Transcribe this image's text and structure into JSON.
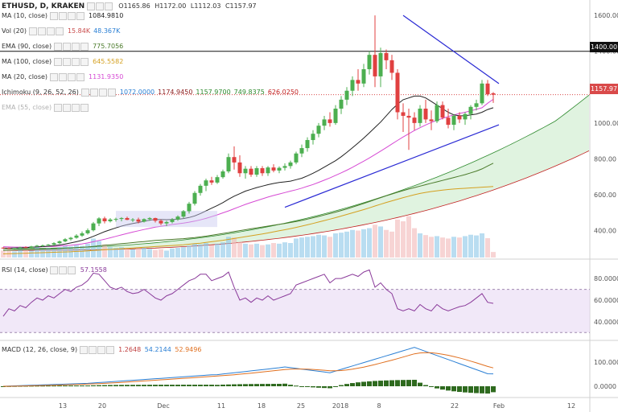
{
  "header": {
    "symbol": "ETHUSD, D, KRAKEN",
    "open": "O1165.86",
    "high": "H1172.00",
    "low": "L1112.03",
    "close": "C1157.97"
  },
  "indicators": [
    {
      "name": "MA (10, close)",
      "values": [
        "1084.9810"
      ],
      "colors": [
        "#222222"
      ]
    },
    {
      "name": "Vol (20)",
      "values": [
        "15.84K",
        "48.367K"
      ],
      "colors": [
        "#c94c4c",
        "#2a7fd4"
      ]
    },
    {
      "name": "EMA (90, close)",
      "values": [
        "775.7056"
      ],
      "colors": [
        "#4a7a2a"
      ]
    },
    {
      "name": "MA (100, close)",
      "values": [
        "645.5582"
      ],
      "colors": [
        "#d4a020"
      ]
    },
    {
      "name": "MA (20, close)",
      "values": [
        "1131.9350"
      ],
      "colors": [
        "#d64ad4"
      ]
    },
    {
      "name": "Ichimoku (9, 26, 52, 26)",
      "values": [
        "1072.0000",
        "1174.9450",
        "1157.9700",
        "749.8375",
        "626.0250"
      ],
      "colors": [
        "#2a7fd4",
        "#8a1a1a",
        "#2e8a2e",
        "#2e8a2e",
        "#c22020"
      ]
    },
    {
      "name": "EMA (55, close)",
      "values": [],
      "colors": []
    }
  ],
  "price_axis": {
    "ticks": [
      "1600.00",
      "1400.00",
      "1200.00",
      "1000.00",
      "800.00",
      "600.00",
      "400.00"
    ],
    "last_price": "1157.97",
    "hline_label": "1400.00"
  },
  "rsi": {
    "label": "RSI (14, close)",
    "value": "57.1558",
    "ticks": [
      "80.0000",
      "60.0000",
      "40.0000"
    ]
  },
  "macd": {
    "label": "MACD (12, 26, close, 9)",
    "values": [
      "1.2648",
      "54.2144",
      "52.9496"
    ],
    "colors": [
      "#c04040",
      "#2a7fd4",
      "#e07020"
    ],
    "ticks": [
      "100.0000",
      "0.0000"
    ]
  },
  "time_axis": {
    "labels": [
      "13",
      "20",
      "Dec",
      "11",
      "18",
      "25",
      "2018",
      "8",
      "22",
      "Feb",
      "12"
    ]
  },
  "chart_data": {
    "type": "candlestick",
    "symbol": "ETHUSD",
    "timeframe": "D",
    "exchange": "KRAKEN",
    "ylim": [
      250,
      1650
    ],
    "y_ticks": [
      400,
      600,
      800,
      1000,
      1200,
      1400,
      1600
    ],
    "x_labels": [
      "13",
      "20",
      "Dec",
      "11",
      "18",
      "25",
      "2018",
      "8",
      "22",
      "Feb",
      "12"
    ],
    "horizontal_line": 1400,
    "ohlc": [
      [
        305,
        308,
        298,
        302
      ],
      [
        302,
        306,
        297,
        300
      ],
      [
        300,
        305,
        296,
        303
      ],
      [
        303,
        310,
        300,
        307
      ],
      [
        307,
        312,
        302,
        305
      ],
      [
        305,
        315,
        300,
        312
      ],
      [
        312,
        320,
        308,
        316
      ],
      [
        316,
        322,
        310,
        318
      ],
      [
        318,
        325,
        312,
        322
      ],
      [
        322,
        335,
        318,
        330
      ],
      [
        330,
        345,
        325,
        340
      ],
      [
        340,
        358,
        335,
        352
      ],
      [
        352,
        365,
        345,
        360
      ],
      [
        360,
        380,
        355,
        372
      ],
      [
        372,
        395,
        365,
        385
      ],
      [
        385,
        412,
        378,
        402
      ],
      [
        402,
        448,
        395,
        440
      ],
      [
        440,
        475,
        425,
        468
      ],
      [
        468,
        478,
        440,
        452
      ],
      [
        452,
        470,
        445,
        462
      ],
      [
        462,
        472,
        450,
        465
      ],
      [
        465,
        475,
        452,
        470
      ],
      [
        470,
        478,
        458,
        460
      ],
      [
        460,
        470,
        448,
        462
      ],
      [
        462,
        472,
        440,
        450
      ],
      [
        450,
        468,
        445,
        464
      ],
      [
        464,
        475,
        455,
        470
      ],
      [
        470,
        472,
        445,
        455
      ],
      [
        455,
        462,
        430,
        440
      ],
      [
        440,
        455,
        425,
        448
      ],
      [
        448,
        470,
        440,
        462
      ],
      [
        462,
        485,
        455,
        478
      ],
      [
        478,
        515,
        470,
        508
      ],
      [
        508,
        560,
        495,
        550
      ],
      [
        550,
        620,
        540,
        610
      ],
      [
        610,
        660,
        595,
        650
      ],
      [
        650,
        690,
        620,
        680
      ],
      [
        680,
        700,
        655,
        668
      ],
      [
        668,
        710,
        660,
        698
      ],
      [
        698,
        740,
        690,
        730
      ],
      [
        730,
        830,
        720,
        810
      ],
      [
        810,
        870,
        740,
        780
      ],
      [
        780,
        820,
        700,
        720
      ],
      [
        720,
        760,
        690,
        745
      ],
      [
        745,
        760,
        700,
        712
      ],
      [
        712,
        760,
        700,
        748
      ],
      [
        748,
        760,
        705,
        720
      ],
      [
        720,
        760,
        705,
        752
      ],
      [
        752,
        770,
        725,
        735
      ],
      [
        735,
        758,
        720,
        750
      ],
      [
        750,
        775,
        735,
        760
      ],
      [
        760,
        790,
        745,
        780
      ],
      [
        780,
        840,
        770,
        830
      ],
      [
        830,
        880,
        810,
        860
      ],
      [
        860,
        920,
        840,
        905
      ],
      [
        905,
        960,
        880,
        940
      ],
      [
        940,
        1000,
        920,
        985
      ],
      [
        985,
        1040,
        960,
        1020
      ],
      [
        1020,
        1060,
        980,
        1000
      ],
      [
        1000,
        1100,
        990,
        1080
      ],
      [
        1080,
        1150,
        1050,
        1130
      ],
      [
        1130,
        1200,
        1100,
        1180
      ],
      [
        1180,
        1260,
        1150,
        1240
      ],
      [
        1240,
        1300,
        1180,
        1220
      ],
      [
        1220,
        1330,
        1200,
        1300
      ],
      [
        1300,
        1400,
        1270,
        1380
      ],
      [
        1380,
        1600,
        1200,
        1260
      ],
      [
        1260,
        1420,
        1200,
        1390
      ],
      [
        1390,
        1410,
        1300,
        1350
      ],
      [
        1350,
        1380,
        1240,
        1280
      ],
      [
        1280,
        1300,
        1020,
        1060
      ],
      [
        1060,
        1110,
        950,
        1040
      ],
      [
        1040,
        1080,
        850,
        1030
      ],
      [
        1030,
        1060,
        960,
        1000
      ],
      [
        1000,
        1100,
        980,
        1080
      ],
      [
        1080,
        1130,
        1000,
        1020
      ],
      [
        1020,
        1070,
        960,
        1010
      ],
      [
        1010,
        1120,
        1000,
        1100
      ],
      [
        1100,
        1120,
        1020,
        1030
      ],
      [
        1030,
        1080,
        970,
        990
      ],
      [
        990,
        1050,
        960,
        1040
      ],
      [
        1040,
        1060,
        1000,
        1020
      ],
      [
        1020,
        1060,
        990,
        1050
      ],
      [
        1050,
        1100,
        1020,
        1090
      ],
      [
        1090,
        1130,
        1070,
        1110
      ],
      [
        1110,
        1240,
        1100,
        1220
      ],
      [
        1220,
        1240,
        1150,
        1160
      ],
      [
        1165.86,
        1172,
        1112.03,
        1157.97
      ]
    ],
    "series_ma10": [
      302,
      302,
      303,
      304,
      305,
      307,
      309,
      311,
      313,
      316,
      320,
      325,
      331,
      338,
      346,
      356,
      368,
      381,
      394,
      405,
      415,
      425,
      433,
      440,
      445,
      452,
      458,
      462,
      462,
      461,
      462,
      463,
      467,
      473,
      482,
      495,
      510,
      525,
      540,
      556,
      575,
      592,
      606,
      620,
      630,
      640,
      648,
      656,
      663,
      668,
      672,
      676,
      684,
      692,
      705,
      720,
      736,
      754,
      772,
      790,
      812,
      836,
      862,
      888,
      916,
      945,
      975,
      1005,
      1040,
      1075,
      1105,
      1130,
      1140,
      1150,
      1150,
      1140,
      1120,
      1100,
      1080,
      1060,
      1045,
      1040,
      1040,
      1045,
      1050,
      1060,
      1075,
      1085
    ],
    "series_ma20": [
      310,
      309,
      308,
      308,
      308,
      308,
      309,
      310,
      311,
      312,
      314,
      316,
      318,
      322,
      326,
      331,
      338,
      345,
      352,
      360,
      368,
      376,
      384,
      392,
      399,
      406,
      413,
      419,
      424,
      429,
      434,
      438,
      442,
      447,
      453,
      460,
      468,
      478,
      488,
      499,
      510,
      522,
      534,
      546,
      557,
      567,
      577,
      587,
      596,
      604,
      612,
      620,
      628,
      637,
      647,
      657,
      669,
      681,
      694,
      708,
      722,
      737,
      753,
      770,
      787,
      805,
      824,
      843,
      863,
      883,
      903,
      922,
      940,
      958,
      974,
      989,
      1003,
      1015,
      1026,
      1036,
      1045,
      1053,
      1060,
      1068,
      1076,
      1085,
      1110,
      1132
    ],
    "series_ema90": [
      290,
      291,
      292,
      293,
      294,
      295,
      296,
      297,
      298,
      299,
      300,
      302,
      303,
      305,
      307,
      309,
      312,
      315,
      318,
      321,
      324,
      327,
      330,
      333,
      336,
      339,
      342,
      345,
      347,
      349,
      351,
      353,
      355,
      358,
      361,
      365,
      369,
      374,
      379,
      384,
      389,
      395,
      400,
      405,
      410,
      415,
      420,
      425,
      430,
      435,
      440,
      445,
      451,
      457,
      464,
      471,
      479,
      487,
      495,
      503,
      512,
      521,
      531,
      541,
      551,
      562,
      573,
      584,
      594,
      604,
      614,
      623,
      632,
      640,
      648,
      656,
      664,
      672,
      680,
      688,
      696,
      704,
      712,
      722,
      732,
      744,
      760,
      775.7
    ],
    "series_ma100": [
      270,
      271,
      272,
      273,
      274,
      275,
      276,
      277,
      278,
      279,
      280,
      281,
      282,
      284,
      285,
      287,
      289,
      291,
      293,
      295,
      297,
      299,
      301,
      303,
      305,
      307,
      309,
      311,
      313,
      315,
      317,
      319,
      321,
      324,
      327,
      330,
      334,
      338,
      342,
      346,
      351,
      356,
      361,
      366,
      371,
      376,
      381,
      387,
      393,
      399,
      405,
      411,
      418,
      425,
      432,
      440,
      448,
      456,
      464,
      472,
      481,
      490,
      499,
      508,
      517,
      527,
      537,
      547,
      557,
      566,
      575,
      584,
      592,
      600,
      607,
      613,
      618,
      622,
      626,
      629,
      632,
      634,
      636,
      638,
      640,
      642,
      644,
      645.6
    ],
    "volume": [
      20,
      22,
      18,
      25,
      24,
      20,
      30,
      26,
      28,
      25,
      30,
      35,
      32,
      36,
      34,
      40,
      55,
      48,
      38,
      30,
      28,
      30,
      25,
      24,
      26,
      28,
      25,
      22,
      24,
      20,
      26,
      28,
      30,
      34,
      40,
      38,
      42,
      36,
      40,
      44,
      60,
      58,
      45,
      40,
      38,
      40,
      36,
      38,
      42,
      40,
      44,
      42,
      55,
      58,
      60,
      62,
      66,
      64,
      60,
      70,
      72,
      75,
      80,
      78,
      82,
      85,
      95,
      90,
      80,
      75,
      110,
      105,
      120,
      85,
      70,
      65,
      60,
      62,
      58,
      55,
      60,
      58,
      62,
      66,
      64,
      70,
      56,
      16
    ]
  }
}
